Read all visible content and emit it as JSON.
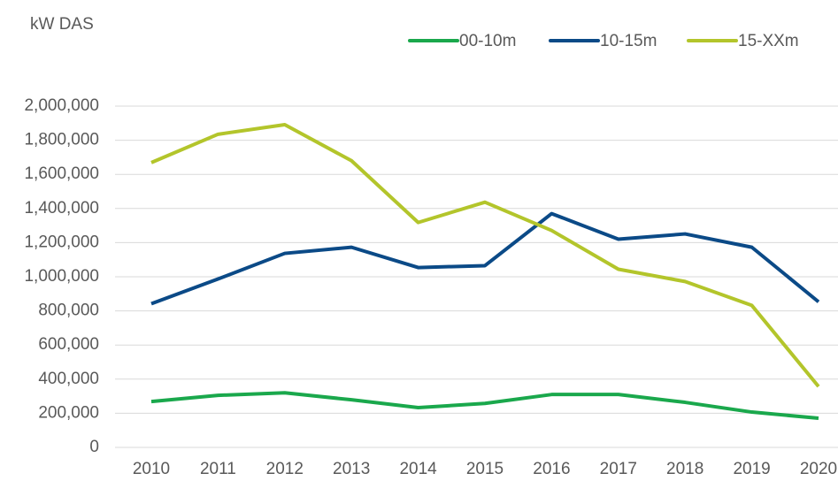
{
  "chart_data": {
    "type": "line",
    "title": "kW DAS",
    "categories": [
      "2010",
      "2011",
      "2012",
      "2013",
      "2014",
      "2015",
      "2016",
      "2017",
      "2018",
      "2019",
      "2020"
    ],
    "series": [
      {
        "name": "00-10m",
        "color": "#1aa84c",
        "values": [
          269000,
          305000,
          320000,
          279000,
          233000,
          258000,
          310000,
          310000,
          264000,
          207000,
          171000
        ]
      },
      {
        "name": "10-15m",
        "color": "#0b4a87",
        "values": [
          842000,
          987000,
          1137000,
          1173000,
          1054000,
          1065000,
          1370000,
          1220000,
          1251000,
          1173000,
          853000
        ]
      },
      {
        "name": "15-XXm",
        "color": "#b3c52b",
        "values": [
          1669000,
          1835000,
          1891000,
          1680000,
          1318000,
          1437000,
          1271000,
          1044000,
          972000,
          832000,
          357000
        ]
      }
    ],
    "ylim": [
      0,
      2000000
    ],
    "yticks": [
      0,
      {
        "value": 200000,
        "label": "200,000"
      },
      {
        "value": 400000,
        "label": "400,000"
      },
      {
        "value": 600000,
        "label": "600,000"
      },
      {
        "value": 800000,
        "label": "800,000"
      },
      {
        "value": 1000000,
        "label": "1,000,000"
      },
      {
        "value": 1200000,
        "label": "1,200,000"
      },
      {
        "value": 1400000,
        "label": "1,400,000"
      },
      {
        "value": 1600000,
        "label": "1,600,000"
      },
      {
        "value": 1800000,
        "label": "1,800,000"
      },
      {
        "value": 2000000,
        "label": "2,000,000"
      }
    ],
    "grid": true,
    "legend": "top-right"
  }
}
